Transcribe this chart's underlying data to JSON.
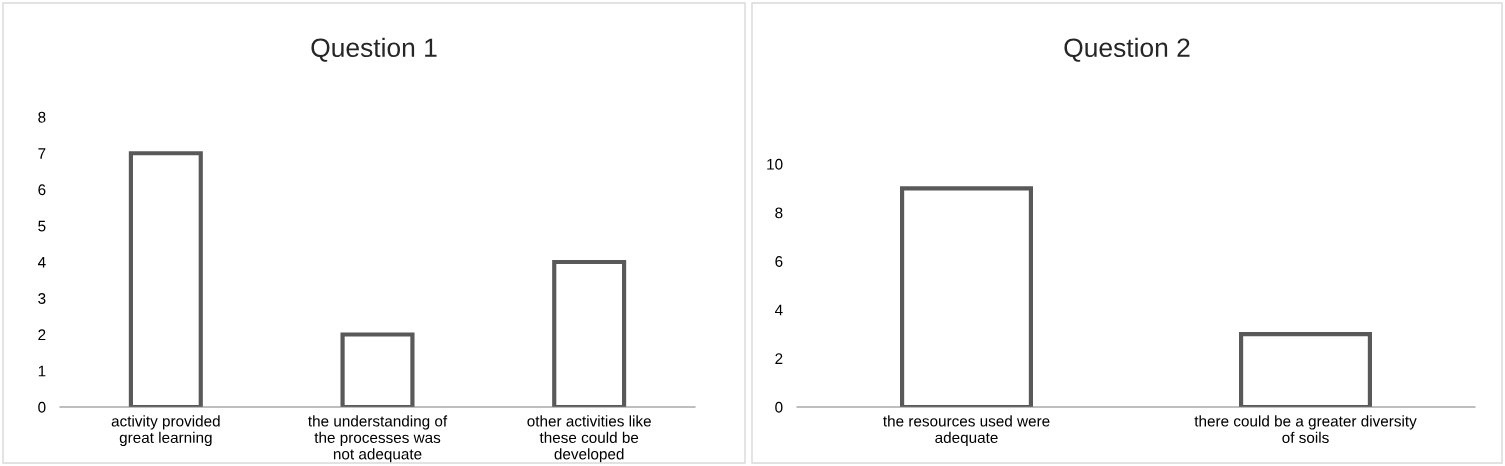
{
  "chart_data": [
    {
      "type": "bar",
      "title": "Question 1",
      "categories": [
        "activity provided\ngreat learning",
        "the understanding of\nthe processes was\nnot adequate",
        "other activities like\nthese could be\ndeveloped"
      ],
      "values": [
        7,
        2,
        4
      ],
      "color": "#595959",
      "ylim": [
        0,
        8
      ],
      "yticks": [
        0,
        1,
        2,
        3,
        4,
        5,
        6,
        7,
        8
      ],
      "grid": false,
      "legend": false
    },
    {
      "type": "bar",
      "title": "Question 2",
      "categories": [
        "the resources used were\nadequate",
        "there could be a greater diversity\nof soils"
      ],
      "values": [
        9,
        3
      ],
      "color": "#595959",
      "ylim": [
        0,
        10
      ],
      "yticks": [
        0,
        2,
        4,
        6,
        8,
        10
      ],
      "grid": false,
      "legend": false
    }
  ]
}
